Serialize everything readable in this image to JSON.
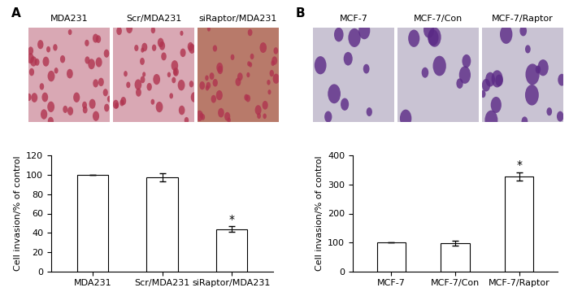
{
  "chart_data": [
    {
      "type": "bar",
      "panel_label": "A",
      "image_labels": [
        "MDA231",
        "Scr/MDA231",
        "siRaptor/MDA231"
      ],
      "categories": [
        "MDA231",
        "Scr/MDA231",
        "siRaptor/MDA231"
      ],
      "values": [
        100,
        97.5,
        44
      ],
      "error": [
        0,
        4,
        3
      ],
      "ylabel": "Cell invasion/% of control",
      "ylim": [
        0,
        120
      ],
      "yticks": [
        0,
        20,
        40,
        60,
        80,
        100,
        120
      ],
      "color": "#ffffff",
      "annotations": [
        {
          "category": "siRaptor/MDA231",
          "text": "*"
        }
      ]
    },
    {
      "type": "bar",
      "panel_label": "B",
      "image_labels": [
        "MCF-7",
        "MCF-7/Con",
        "MCF-7/Raptor"
      ],
      "categories": [
        "MCF-7",
        "MCF-7/Con",
        "MCF-7/Raptor"
      ],
      "values": [
        100,
        97,
        329
      ],
      "error": [
        0,
        8,
        14
      ],
      "ylabel": "Cell invasion/% of control",
      "ylim": [
        0,
        400
      ],
      "yticks": [
        0,
        100,
        200,
        300,
        400
      ],
      "color": "#ffffff",
      "annotations": [
        {
          "category": "MCF-7/Raptor",
          "text": "*"
        }
      ]
    }
  ]
}
